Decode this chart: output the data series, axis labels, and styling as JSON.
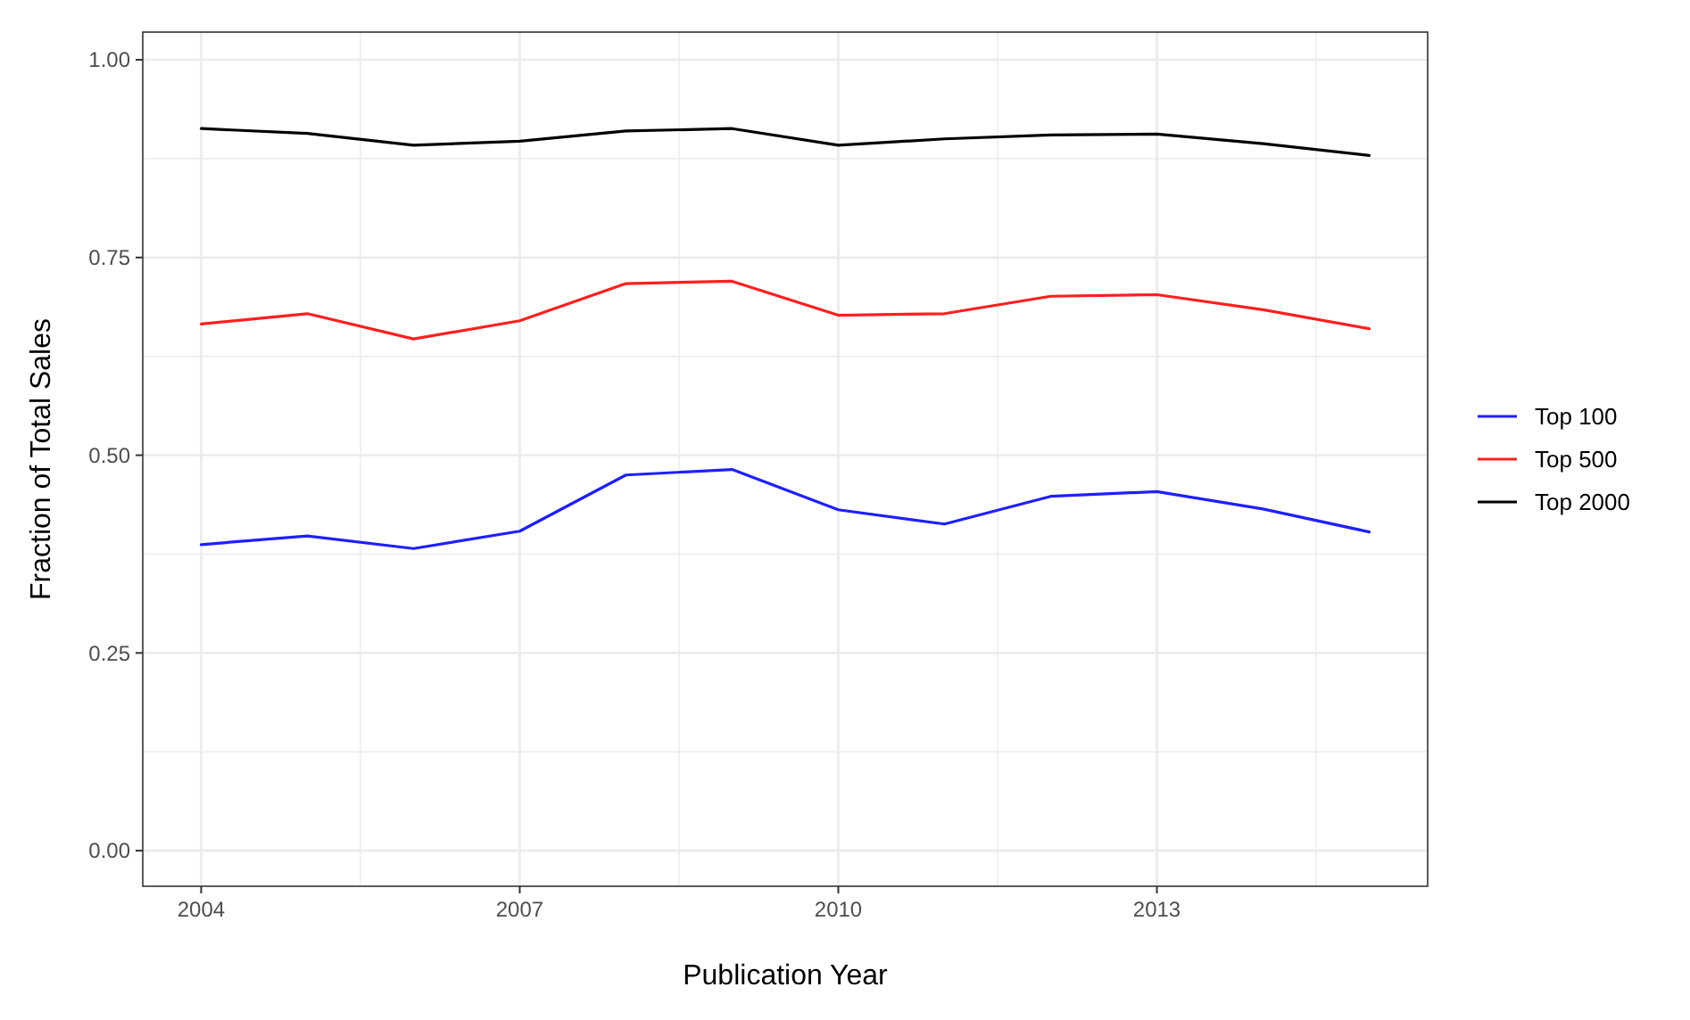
{
  "chart_data": {
    "type": "line",
    "xlabel": "Publication Year",
    "ylabel": "Fraction of Total Sales",
    "x": [
      2004,
      2005,
      2006,
      2007,
      2008,
      2009,
      2010,
      2011,
      2012,
      2013,
      2014,
      2015
    ],
    "series": [
      {
        "name": "Top 100",
        "color": "#1f1fff",
        "values": [
          0.387,
          0.398,
          0.382,
          0.404,
          0.475,
          0.482,
          0.431,
          0.413,
          0.448,
          0.454,
          0.432,
          0.403
        ]
      },
      {
        "name": "Top 500",
        "color": "#ff1f1f",
        "values": [
          0.666,
          0.679,
          0.647,
          0.67,
          0.717,
          0.72,
          0.677,
          0.679,
          0.701,
          0.703,
          0.684,
          0.66
        ]
      },
      {
        "name": "Top 2000",
        "color": "#000000",
        "values": [
          0.913,
          0.907,
          0.892,
          0.897,
          0.91,
          0.913,
          0.892,
          0.9,
          0.905,
          0.906,
          0.894,
          0.879
        ]
      }
    ],
    "xlim": [
      2003.45,
      2015.55
    ],
    "ylim": [
      -0.045,
      1.035
    ],
    "xticks": [
      2004,
      {
        "value": 2005.5,
        "label": null
      },
      2007,
      {
        "value": 2008.5,
        "label": null
      },
      2010,
      {
        "value": 2011.5,
        "label": null
      },
      2013,
      {
        "value": 2014.5,
        "label": null
      }
    ],
    "yticks": [
      {
        "value": 0,
        "label": "0.00"
      },
      {
        "value": 0.125,
        "label": null
      },
      {
        "value": 0.25,
        "label": "0.25"
      },
      {
        "value": 0.375,
        "label": null
      },
      {
        "value": 0.5,
        "label": "0.50"
      },
      {
        "value": 0.625,
        "label": null
      },
      {
        "value": 0.75,
        "label": "0.75"
      },
      {
        "value": 0.875,
        "label": null
      },
      {
        "value": 1,
        "label": "1.00"
      }
    ],
    "grid": true,
    "legend": "right",
    "marker": "none",
    "line_style": "solid"
  }
}
